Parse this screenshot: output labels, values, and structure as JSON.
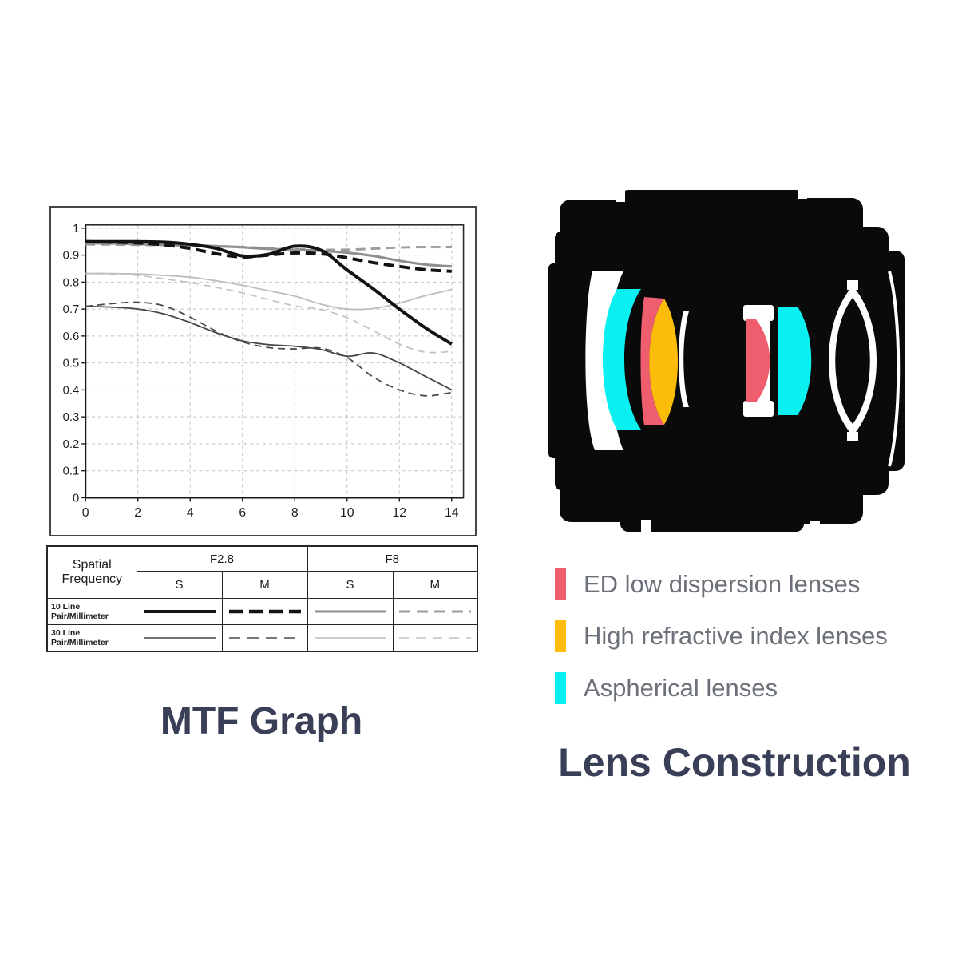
{
  "mtf": {
    "title": "MTF Graph",
    "table": {
      "corner_label": "Spatial Frequency",
      "groups": [
        "F2.8",
        "F8"
      ],
      "subheaders": [
        "S",
        "M",
        "S",
        "M"
      ],
      "rows": [
        {
          "label": "10 Line Pair/Millimeter",
          "samples": [
            {
              "color": "#141414",
              "width": 4,
              "dash": null
            },
            {
              "color": "#141414",
              "width": 4.5,
              "dash": "17 8"
            },
            {
              "color": "#8f8f8f",
              "width": 3,
              "dash": null
            },
            {
              "color": "#9e9e9e",
              "width": 3,
              "dash": "14 8"
            }
          ]
        },
        {
          "label": "30 Line Pair/Millimeter",
          "samples": [
            {
              "color": "#454545",
              "width": 1.6,
              "dash": null
            },
            {
              "color": "#4b4b4b",
              "width": 1.6,
              "dash": "14 9"
            },
            {
              "color": "#bcbcbc",
              "width": 1.6,
              "dash": null
            },
            {
              "color": "#c3c3c3",
              "width": 1.6,
              "dash": "12 9"
            }
          ]
        }
      ]
    }
  },
  "chart_data": {
    "type": "line",
    "title": "MTF Graph",
    "xlabel": "",
    "ylabel": "",
    "x": [
      0,
      1,
      2,
      3,
      4,
      5,
      6,
      7,
      8,
      9,
      10,
      11,
      12,
      13,
      14
    ],
    "xlim": [
      0,
      14.45
    ],
    "ylim": [
      0,
      1.012
    ],
    "xticks": [
      0,
      2,
      4,
      6,
      8,
      10,
      12,
      14
    ],
    "yticks": [
      0,
      0.1,
      0.2,
      0.3,
      0.4,
      0.5,
      0.6,
      0.7,
      0.8,
      0.9,
      1
    ],
    "grid": true,
    "legend_position": "table-below",
    "series": [
      {
        "name": "F8 10 Line Pair/mm M",
        "color": "#9e9e9e",
        "width": 3,
        "dash": "12 7",
        "values": [
          0.94,
          0.939,
          0.938,
          0.937,
          0.935,
          0.933,
          0.93,
          0.926,
          0.922,
          0.92,
          0.92,
          0.924,
          0.928,
          0.93,
          0.93
        ]
      },
      {
        "name": "F8 10 Line Pair/mm S",
        "color": "#8f8f8f",
        "width": 3.2,
        "dash": null,
        "values": [
          0.944,
          0.943,
          0.941,
          0.939,
          0.936,
          0.933,
          0.929,
          0.923,
          0.92,
          0.916,
          0.909,
          0.897,
          0.879,
          0.865,
          0.858
        ]
      },
      {
        "name": "F8 30 Line Pair/mm M",
        "color": "#c3c3c3",
        "width": 1.8,
        "dash": "9 6",
        "values": [
          0.832,
          0.83,
          0.825,
          0.812,
          0.798,
          0.78,
          0.76,
          0.735,
          0.712,
          0.698,
          0.668,
          0.62,
          0.57,
          0.54,
          0.543
        ]
      },
      {
        "name": "F8 30 Line Pair/mm S",
        "color": "#bcbcbc",
        "width": 1.8,
        "dash": null,
        "values": [
          0.832,
          0.832,
          0.83,
          0.825,
          0.818,
          0.805,
          0.788,
          0.768,
          0.748,
          0.718,
          0.7,
          0.702,
          0.722,
          0.75,
          0.772
        ]
      },
      {
        "name": "F2.8 30 Line Pair/mm M",
        "color": "#4b4b4b",
        "width": 1.8,
        "dash": "9 6",
        "values": [
          0.71,
          0.72,
          0.725,
          0.712,
          0.67,
          0.618,
          0.578,
          0.557,
          0.552,
          0.555,
          0.52,
          0.448,
          0.4,
          0.378,
          0.39
        ]
      },
      {
        "name": "F2.8 30 Line Pair/mm S",
        "color": "#454545",
        "width": 1.8,
        "dash": null,
        "values": [
          0.71,
          0.707,
          0.7,
          0.682,
          0.65,
          0.612,
          0.582,
          0.568,
          0.562,
          0.55,
          0.525,
          0.537,
          0.5,
          0.45,
          0.4
        ]
      },
      {
        "name": "F2.8 10 Line Pair/mm M",
        "color": "#121212",
        "width": 4,
        "dash": "13 7",
        "values": [
          0.95,
          0.948,
          0.945,
          0.938,
          0.925,
          0.905,
          0.893,
          0.9,
          0.908,
          0.905,
          0.89,
          0.872,
          0.858,
          0.846,
          0.84
        ]
      },
      {
        "name": "F2.8 10 Line Pair/mm S",
        "color": "#121212",
        "width": 4,
        "dash": null,
        "values": [
          0.95,
          0.95,
          0.95,
          0.948,
          0.94,
          0.925,
          0.897,
          0.903,
          0.933,
          0.918,
          0.845,
          0.775,
          0.7,
          0.63,
          0.57
        ]
      }
    ]
  },
  "lens": {
    "title": "Lens Construction",
    "colors": {
      "ed": "#ef5e6e",
      "high_index": "#fcbd0a",
      "aspherical": "#0aefef"
    },
    "legend": [
      {
        "key": "ed",
        "label": "ED low dispersion lenses"
      },
      {
        "key": "high_index",
        "label": "High refractive index lenses"
      },
      {
        "key": "aspherical",
        "label": "Aspherical lenses"
      }
    ]
  }
}
